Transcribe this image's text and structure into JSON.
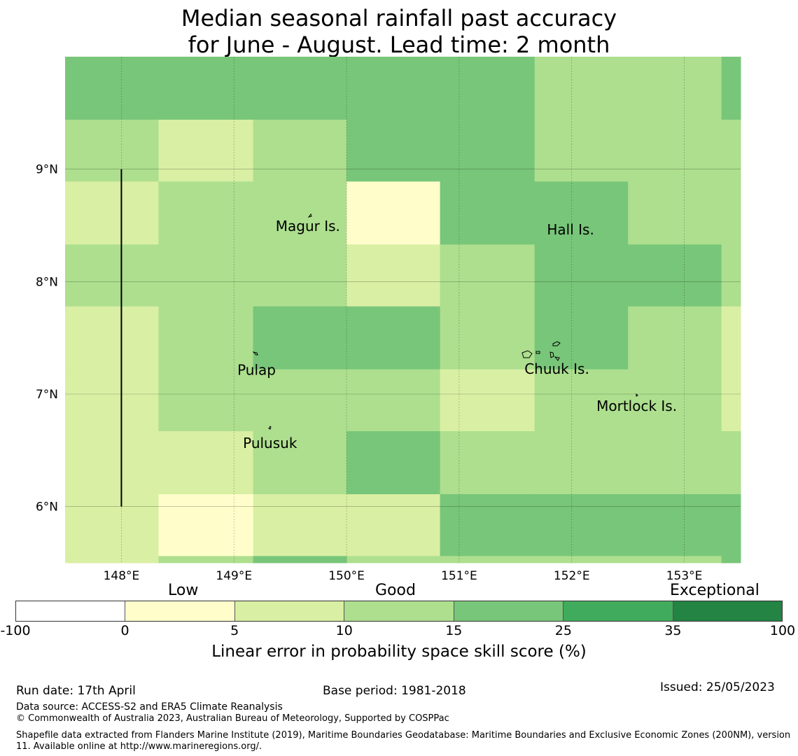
{
  "title": {
    "line1": "Median seasonal rainfall past accuracy",
    "line2": "for June - August. Lead time: 2 month"
  },
  "map": {
    "lon_range": [
      147.5,
      153.5
    ],
    "lat_range": [
      5.5,
      10.0
    ],
    "lon_ticks": [
      {
        "value": 148,
        "label": "148°E"
      },
      {
        "value": 149,
        "label": "149°E"
      },
      {
        "value": 150,
        "label": "150°E"
      },
      {
        "value": 151,
        "label": "151°E"
      },
      {
        "value": 152,
        "label": "152°E"
      },
      {
        "value": 153,
        "label": "153°E"
      }
    ],
    "lat_ticks": [
      {
        "value": 9,
        "label": "9°N"
      },
      {
        "value": 8,
        "label": "8°N"
      },
      {
        "value": 7,
        "label": "7°N"
      },
      {
        "value": 6,
        "label": "6°N"
      }
    ],
    "grid_lon_edges": [
      147.5,
      148.33,
      149.17,
      150.0,
      150.83,
      151.67,
      152.5,
      153.33,
      153.5
    ],
    "grid_lat_edges": [
      10.0,
      9.44,
      8.89,
      8.33,
      7.78,
      7.22,
      6.67,
      6.11,
      5.56,
      5.5
    ],
    "skill_class_grid": [
      [
        4,
        4,
        4,
        4,
        4,
        3,
        3,
        4
      ],
      [
        3,
        2,
        3,
        4,
        4,
        3,
        3,
        3
      ],
      [
        2,
        3,
        3,
        1,
        4,
        4,
        3,
        3
      ],
      [
        3,
        3,
        3,
        2,
        3,
        4,
        4,
        3
      ],
      [
        2,
        3,
        4,
        4,
        3,
        4,
        3,
        2
      ],
      [
        2,
        3,
        3,
        3,
        2,
        3,
        3,
        2
      ],
      [
        2,
        2,
        3,
        4,
        3,
        3,
        3,
        3
      ],
      [
        2,
        1,
        2,
        2,
        4,
        4,
        4,
        4
      ],
      [
        2,
        3,
        4,
        3,
        3,
        3,
        3,
        4
      ]
    ],
    "boundary_line": {
      "lon": 148.0,
      "lat_from": 6.0,
      "lat_to": 9.0
    },
    "places": [
      {
        "name": "Magur Is.",
        "lon": 149.37,
        "lat": 8.5
      },
      {
        "name": "Hall Is.",
        "lon": 151.78,
        "lat": 8.47
      },
      {
        "name": "Pulap",
        "lon": 149.03,
        "lat": 7.22
      },
      {
        "name": "Chuuk Is.",
        "lon": 151.58,
        "lat": 7.23
      },
      {
        "name": "Mortlock Is.",
        "lon": 152.22,
        "lat": 6.9
      },
      {
        "name": "Pulusuk",
        "lon": 149.08,
        "lat": 6.57
      }
    ]
  },
  "colorbar": {
    "categories": [
      "Low",
      "Good",
      "Exceptional"
    ],
    "ticks": [
      "-100",
      "0",
      "5",
      "10",
      "15",
      "25",
      "35",
      "100"
    ],
    "colors": [
      "#ffffff",
      "#fffecb",
      "#d9efa3",
      "#addf8e",
      "#78c679",
      "#41ab5d",
      "#238443"
    ],
    "label": "Linear error in probability space skill score (%)"
  },
  "footer": {
    "run_date": "Run date: 17th April",
    "base_period": "Base period: 1981-2018",
    "issued": "Issued: 25/05/2023",
    "data_source": "Data source: ACCESS-S2 and ERA5 Climate Reanalysis",
    "copyright": "© Commonwealth of Australia 2023, Australian Bureau of Meteorology, Supported by COSPPac",
    "shapefile": "Shapefile data extracted from Flanders Marine Institute (2019), Maritime Boundaries Geodatabase: Maritime Boundaries and Exclusive Economic Zones (200NM), version 11. Available online at http://www.marineregions.org/."
  }
}
